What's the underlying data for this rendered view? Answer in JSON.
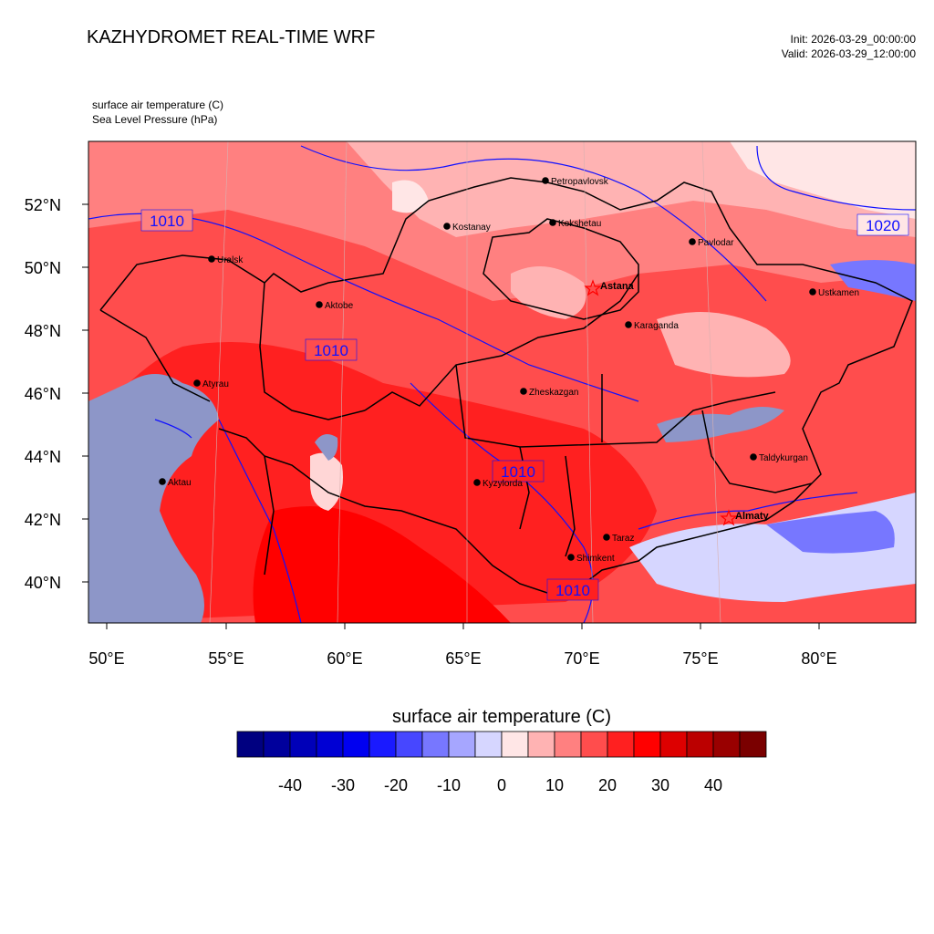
{
  "header": {
    "title": "KAZHYDROMET REAL-TIME WRF",
    "init": "Init: 2026-03-29_00:00:00",
    "valid": "Valid: 2026-03-29_12:00:00",
    "field1": "surface air temperature   (C)",
    "field2": "Sea Level Pressure   (hPa)"
  },
  "axes": {
    "lon_labels": [
      "50°E",
      "55°E",
      "60°E",
      "65°E",
      "70°E",
      "75°E",
      "80°E"
    ],
    "lat_labels": [
      "52°N",
      "50°N",
      "48°N",
      "46°N",
      "44°N",
      "42°N",
      "40°N"
    ]
  },
  "pressure_labels": [
    "1010",
    "1010",
    "1010",
    "1010",
    "1020"
  ],
  "cities": [
    {
      "name": "Petropavlovsk",
      "bold": false,
      "marker": "dot"
    },
    {
      "name": "Kostanay",
      "bold": false,
      "marker": "dot"
    },
    {
      "name": "Kokshetau",
      "bold": false,
      "marker": "dot"
    },
    {
      "name": "Uralsk",
      "bold": false,
      "marker": "dot"
    },
    {
      "name": "Pavlodar",
      "bold": false,
      "marker": "dot"
    },
    {
      "name": "Aktobe",
      "bold": false,
      "marker": "dot"
    },
    {
      "name": "Astana",
      "bold": true,
      "marker": "star"
    },
    {
      "name": "Ustkamen",
      "bold": false,
      "marker": "dot"
    },
    {
      "name": "Karaganda",
      "bold": false,
      "marker": "dot"
    },
    {
      "name": "Atyrau",
      "bold": false,
      "marker": "dot"
    },
    {
      "name": "Zheskazgan",
      "bold": false,
      "marker": "dot"
    },
    {
      "name": "Taldykurgan",
      "bold": false,
      "marker": "dot"
    },
    {
      "name": "Kyzylorda",
      "bold": false,
      "marker": "dot"
    },
    {
      "name": "Aktau",
      "bold": false,
      "marker": "dot"
    },
    {
      "name": "Almaty",
      "bold": true,
      "marker": "star"
    },
    {
      "name": "Taraz",
      "bold": false,
      "marker": "dot"
    },
    {
      "name": "Shimkent",
      "bold": false,
      "marker": "dot"
    }
  ],
  "colorbar": {
    "title": "surface air temperature  (C)",
    "tick_labels": [
      "-40",
      "-30",
      "-20",
      "-10",
      "0",
      "10",
      "20",
      "30",
      "40"
    ],
    "colors": [
      "#000080",
      "#00009c",
      "#0000b8",
      "#0000d4",
      "#0000f0",
      "#1a1aff",
      "#4747ff",
      "#7777ff",
      "#a6a6ff",
      "#d6d6ff",
      "#ffe6e6",
      "#ffb3b3",
      "#ff8080",
      "#ff4d4d",
      "#ff2020",
      "#ff0000",
      "#dd0000",
      "#bb0000",
      "#990000",
      "#7a0000"
    ]
  },
  "colors": {
    "sea": "#8d96c8",
    "isobar": "#1010ff",
    "border": "#000000"
  }
}
